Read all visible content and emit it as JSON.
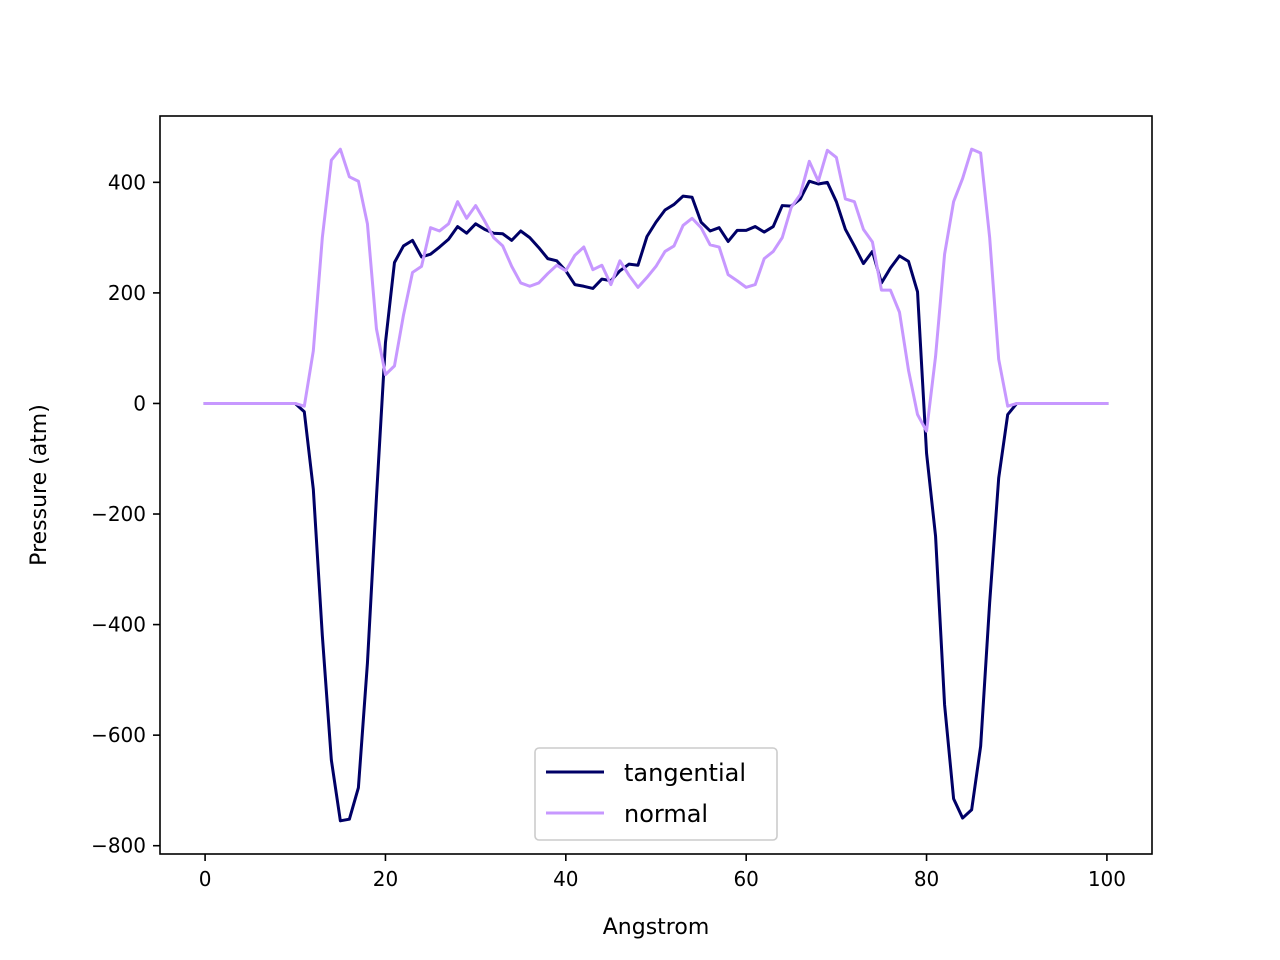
{
  "chart_data": {
    "type": "line",
    "title": "",
    "xlabel": "Angstrom",
    "ylabel": "Pressure (atm)",
    "xlim": [
      -5,
      105
    ],
    "ylim": [
      -815,
      520
    ],
    "xticks": [
      0,
      20,
      40,
      60,
      80,
      100
    ],
    "yticks": [
      -800,
      -600,
      -400,
      -200,
      0,
      200,
      400
    ],
    "xtick_labels": [
      "0",
      "20",
      "40",
      "60",
      "80",
      "100"
    ],
    "ytick_labels": [
      "−800",
      "−600",
      "−400",
      "−200",
      "0",
      "200",
      "400"
    ],
    "grid": false,
    "legend_position": "lower center",
    "x": [
      0,
      1,
      2,
      3,
      4,
      5,
      6,
      7,
      8,
      9,
      10,
      11,
      12,
      13,
      14,
      15,
      16,
      17,
      18,
      19,
      20,
      21,
      22,
      23,
      24,
      25,
      26,
      27,
      28,
      29,
      30,
      31,
      32,
      33,
      34,
      35,
      36,
      37,
      38,
      39,
      40,
      41,
      42,
      43,
      44,
      45,
      46,
      47,
      48,
      49,
      50,
      51,
      52,
      53,
      54,
      55,
      56,
      57,
      58,
      59,
      60,
      61,
      62,
      63,
      64,
      65,
      66,
      67,
      68,
      69,
      70,
      71,
      72,
      73,
      74,
      75,
      76,
      77,
      78,
      79,
      80,
      81,
      82,
      83,
      84,
      85,
      86,
      87,
      88,
      89,
      90,
      91,
      92,
      93,
      94,
      95,
      96,
      97,
      98,
      99,
      100
    ],
    "series": [
      {
        "name": "tangential",
        "color": "#000066",
        "values": [
          0,
          0,
          0,
          0,
          0,
          0,
          0,
          0,
          0,
          0,
          0,
          -15,
          -155,
          -420,
          -645,
          -755,
          -752,
          -695,
          -470,
          -170,
          110,
          255,
          285,
          295,
          265,
          270,
          283,
          297,
          320,
          308,
          325,
          315,
          308,
          307,
          295,
          312,
          300,
          282,
          262,
          258,
          240,
          215,
          212,
          208,
          225,
          222,
          240,
          252,
          250,
          302,
          328,
          350,
          360,
          375,
          373,
          328,
          312,
          318,
          293,
          313,
          313,
          320,
          310,
          320,
          358,
          357,
          370,
          402,
          397,
          400,
          365,
          315,
          285,
          253,
          275,
          218,
          245,
          267,
          257,
          202,
          -90,
          -240,
          -545,
          -715,
          -750,
          -735,
          -620,
          -360,
          -135,
          -20,
          0,
          0,
          0,
          0,
          0,
          0,
          0,
          0,
          0,
          0,
          0
        ]
      },
      {
        "name": "normal",
        "color": "#c798ff",
        "values": [
          0,
          0,
          0,
          0,
          0,
          0,
          0,
          0,
          0,
          0,
          0,
          -5,
          95,
          300,
          440,
          460,
          410,
          402,
          325,
          135,
          52,
          68,
          160,
          237,
          248,
          318,
          312,
          325,
          365,
          335,
          358,
          330,
          300,
          285,
          248,
          218,
          212,
          218,
          235,
          250,
          240,
          268,
          283,
          242,
          250,
          215,
          258,
          232,
          210,
          228,
          248,
          275,
          285,
          322,
          335,
          318,
          287,
          283,
          233,
          222,
          210,
          215,
          262,
          275,
          300,
          355,
          378,
          438,
          402,
          458,
          445,
          370,
          365,
          315,
          292,
          205,
          205,
          165,
          60,
          -20,
          -50,
          85,
          270,
          365,
          407,
          460,
          453,
          300,
          80,
          -5,
          0,
          0,
          0,
          0,
          0,
          0,
          0,
          0,
          0,
          0,
          0
        ]
      }
    ]
  }
}
